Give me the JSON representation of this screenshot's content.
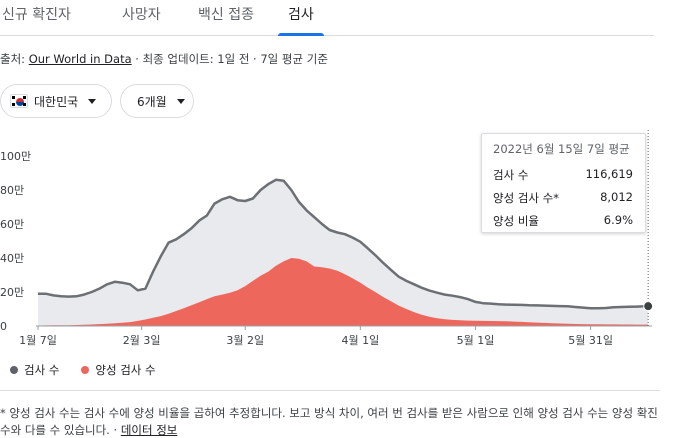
{
  "tabs": [
    "신규 확진자",
    "사망자",
    "백신 접종",
    "검사"
  ],
  "active_tab_index": 3,
  "source": {
    "prefix": "출처: ",
    "link": "Our World in Data",
    "suffix": " · 최종 업데이트: 1일 전 · 7일 평균 기준"
  },
  "filters": {
    "region": "대한민국",
    "period": "6개월"
  },
  "tooltip": {
    "title": "2022년 6월 15일 7일 평균",
    "rows": [
      {
        "label": "검사 수",
        "value": "116,619"
      },
      {
        "label": "양성 검사 수*",
        "value": "8,012"
      },
      {
        "label": "양성 비율",
        "value": "6.9%"
      }
    ]
  },
  "legend": [
    {
      "label": "검사 수",
      "color": "#5f6368"
    },
    {
      "label": "양성 검사 수",
      "color": "#ee675c"
    }
  ],
  "footnote": {
    "text": "* 양성 검사 수는 검사 수에 양성 비율을 곱하여 추정합니다. 보고 방식 차이, 여러 번 검사를 받은 사람으로 인해 양성 검사 수는 양성 확진 수와 다를 수 있습니다. · ",
    "link": "데이터 정보"
  },
  "colors": {
    "tests_line": "#6c6f73",
    "tests_fill": "#e8eaed",
    "positive_fill": "#ee675c",
    "accent": "#1a73e8"
  },
  "chart_data": {
    "type": "area",
    "ylim": [
      0,
      1000000
    ],
    "yticks": [
      {
        "value": 0,
        "label": "0"
      },
      {
        "value": 200000,
        "label": "20만"
      },
      {
        "value": 400000,
        "label": "40만"
      },
      {
        "value": 600000,
        "label": "60만"
      },
      {
        "value": 800000,
        "label": "80만"
      },
      {
        "value": 1000000,
        "label": "100만"
      }
    ],
    "xlim": [
      0,
      160
    ],
    "xticks": [
      {
        "x": 0,
        "label": "1월 7일"
      },
      {
        "x": 27,
        "label": "2월 3일"
      },
      {
        "x": 54,
        "label": "3월 2일"
      },
      {
        "x": 84,
        "label": "4월 1일"
      },
      {
        "x": 114,
        "label": "5월 1일"
      },
      {
        "x": 144,
        "label": "5월 31일"
      }
    ],
    "highlight_x": 159,
    "series": [
      {
        "name": "검사 수",
        "x": [
          0,
          2,
          4,
          6,
          8,
          10,
          12,
          14,
          16,
          18,
          20,
          22,
          24,
          26,
          28,
          30,
          32,
          34,
          36,
          38,
          40,
          42,
          44,
          46,
          48,
          50,
          52,
          54,
          56,
          58,
          60,
          62,
          64,
          66,
          68,
          70,
          72,
          74,
          76,
          78,
          80,
          82,
          84,
          86,
          88,
          90,
          92,
          94,
          96,
          98,
          100,
          102,
          104,
          106,
          108,
          110,
          112,
          114,
          116,
          118,
          120,
          122,
          124,
          126,
          128,
          130,
          132,
          134,
          136,
          138,
          140,
          142,
          144,
          146,
          148,
          150,
          152,
          154,
          156,
          158,
          159
        ],
        "values": [
          190000,
          190000,
          180000,
          175000,
          173000,
          175000,
          185000,
          200000,
          220000,
          245000,
          260000,
          255000,
          245000,
          210000,
          220000,
          320000,
          410000,
          490000,
          510000,
          540000,
          575000,
          620000,
          650000,
          720000,
          745000,
          760000,
          740000,
          735000,
          750000,
          800000,
          835000,
          860000,
          855000,
          800000,
          730000,
          680000,
          640000,
          600000,
          565000,
          550000,
          540000,
          520000,
          495000,
          455000,
          415000,
          370000,
          330000,
          290000,
          265000,
          245000,
          225000,
          208000,
          196000,
          185000,
          178000,
          170000,
          158000,
          142000,
          134000,
          132000,
          128000,
          126000,
          125000,
          124000,
          122000,
          121000,
          120000,
          118000,
          117000,
          116000,
          112000,
          108000,
          105000,
          104000,
          106000,
          110000,
          112000,
          113000,
          114000,
          116000,
          116619
        ]
      },
      {
        "name": "양성 검사 수",
        "x": [
          0,
          2,
          4,
          6,
          8,
          10,
          12,
          14,
          16,
          18,
          20,
          22,
          24,
          26,
          28,
          30,
          32,
          34,
          36,
          38,
          40,
          42,
          44,
          46,
          48,
          50,
          52,
          54,
          56,
          58,
          60,
          62,
          64,
          66,
          68,
          70,
          72,
          74,
          76,
          78,
          80,
          82,
          84,
          86,
          88,
          90,
          92,
          94,
          96,
          98,
          100,
          102,
          104,
          106,
          108,
          110,
          112,
          114,
          116,
          118,
          120,
          122,
          124,
          126,
          128,
          130,
          132,
          134,
          136,
          138,
          140,
          142,
          144,
          146,
          148,
          150,
          152,
          154,
          156,
          158,
          159
        ],
        "values": [
          3000,
          3500,
          4000,
          4500,
          5000,
          6000,
          7500,
          9000,
          11000,
          13000,
          16000,
          19000,
          23000,
          30000,
          38000,
          48000,
          58000,
          72000,
          88000,
          105000,
          122000,
          140000,
          158000,
          175000,
          185000,
          195000,
          210000,
          235000,
          265000,
          295000,
          320000,
          355000,
          380000,
          400000,
          395000,
          380000,
          350000,
          345000,
          338000,
          325000,
          305000,
          280000,
          255000,
          225000,
          198000,
          170000,
          145000,
          120000,
          100000,
          82000,
          66000,
          54000,
          45000,
          40000,
          36000,
          34000,
          32000,
          31000,
          30000,
          29500,
          29000,
          28000,
          26000,
          24000,
          22000,
          20000,
          18000,
          16000,
          14500,
          13000,
          12000,
          11000,
          10500,
          10000,
          9500,
          9200,
          8900,
          8600,
          8300,
          8100,
          8012
        ]
      }
    ]
  }
}
